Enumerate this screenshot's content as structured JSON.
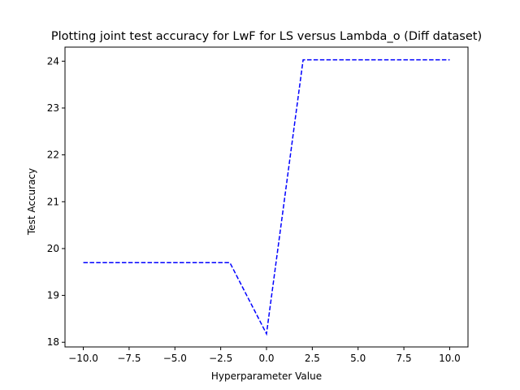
{
  "chart_data": {
    "type": "line",
    "title": "Plotting joint test accuracy for LwF for LS versus Lambda_o (Diff dataset)",
    "xlabel": "Hyperparameter Value",
    "ylabel": "Test Accuracy",
    "xlim": [
      -11.0,
      11.0
    ],
    "ylim": [
      17.9,
      24.3
    ],
    "xticks": [
      -10.0,
      -7.5,
      -5.0,
      -2.5,
      0.0,
      2.5,
      5.0,
      7.5,
      10.0
    ],
    "xtick_labels": [
      "−10.0",
      "−7.5",
      "−5.0",
      "−2.5",
      "0.0",
      "2.5",
      "5.0",
      "7.5",
      "10.0"
    ],
    "yticks": [
      18,
      19,
      20,
      21,
      22,
      23,
      24
    ],
    "ytick_labels": [
      "18",
      "19",
      "20",
      "21",
      "22",
      "23",
      "24"
    ],
    "grid": false,
    "series": [
      {
        "color": "#0000ff",
        "linestyle": "dashed",
        "x": [
          -10,
          -2,
          0,
          2,
          10
        ],
        "y": [
          19.7,
          19.7,
          18.18,
          24.03,
          24.03
        ]
      }
    ]
  }
}
